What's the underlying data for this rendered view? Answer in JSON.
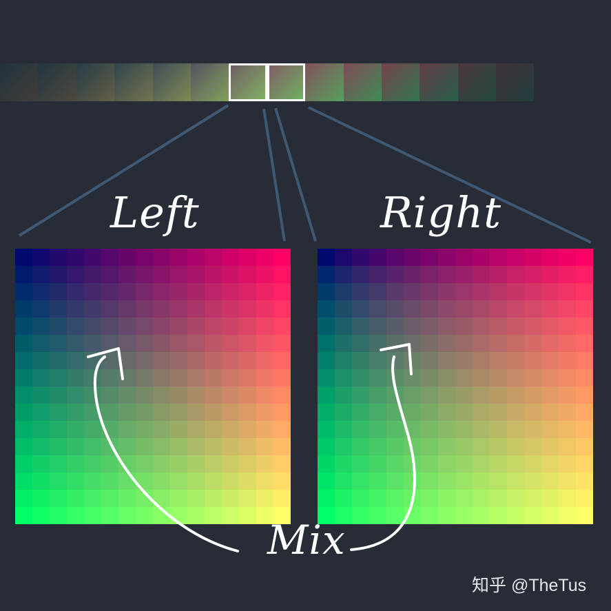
{
  "labels": {
    "left": "Left",
    "right": "Right",
    "mix": "Mix"
  },
  "watermark": "知乎 @TheTus",
  "colors": {
    "background": "#272c36",
    "connector": "#3f5873",
    "arrow": "#ffffff",
    "selection_outline": "#ffffff",
    "corner_top_left": "#000a6e",
    "corner_top_right": "#ff0066",
    "corner_bottom_left": "#00ff66",
    "corner_bottom_right": "#ffff66"
  },
  "palette_strip": {
    "tile_count": 14,
    "selected_tiles": [
      6,
      7
    ]
  },
  "grid": {
    "cells_per_side": 16
  },
  "icons": {
    "arrows": "curved-arrow-icon"
  }
}
